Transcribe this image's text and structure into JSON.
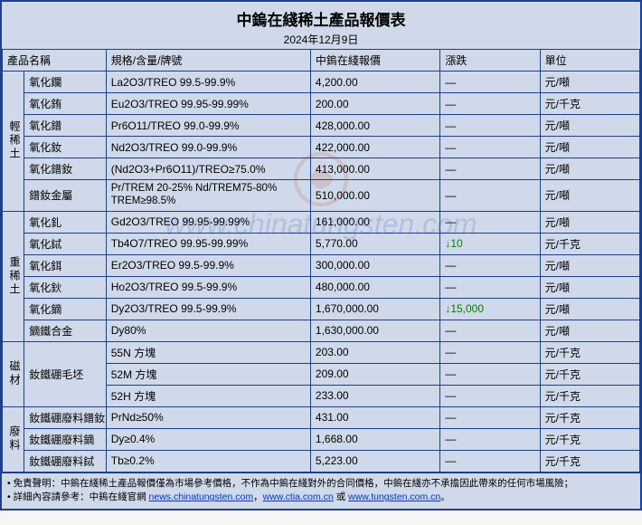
{
  "title": "中鎢在綫稀土產品報價表",
  "date": "2024年12月9日",
  "columns": {
    "name": "產品名稱",
    "spec": "規格/含量/牌號",
    "price": "中鎢在綫報價",
    "change": "漲跌",
    "unit": "單位"
  },
  "groups": [
    {
      "cat": "輕稀土",
      "rows": [
        {
          "name": "氧化鑭",
          "spec": "La2O3/TREO 99.5-99.9%",
          "price": "4,200.00",
          "change": "—",
          "unit": "元/噸"
        },
        {
          "name": "氧化銪",
          "spec": "Eu2O3/TREO 99.95-99.99%",
          "price": "200.00",
          "change": "—",
          "unit": "元/千克"
        },
        {
          "name": "氧化鐠",
          "spec": "Pr6O11/TREO 99.0-99.9%",
          "price": "428,000.00",
          "change": "—",
          "unit": "元/噸"
        },
        {
          "name": "氧化釹",
          "spec": "Nd2O3/TREO 99.0-99.9%",
          "price": "422,000.00",
          "change": "—",
          "unit": "元/噸"
        },
        {
          "name": "氧化鐠釹",
          "spec": "(Nd2O3+Pr6O11)/TREO≥75.0%",
          "price": "413,000.00",
          "change": "—",
          "unit": "元/噸"
        },
        {
          "name": "鐠釹金屬",
          "spec": "Pr/TREM 20-25% Nd/TREM75-80% TREM≥98.5%",
          "price": "510,000.00",
          "change": "—",
          "unit": "元/噸"
        }
      ]
    },
    {
      "cat": "重稀土",
      "rows": [
        {
          "name": "氧化釓",
          "spec": "Gd2O3/TREO 99.95-99.99%",
          "price": "161,000.00",
          "change": "—",
          "unit": "元/噸"
        },
        {
          "name": "氧化鋱",
          "spec": "Tb4O7/TREO 99.95-99.99%",
          "price": "5,770.00",
          "change": "↓10",
          "unit": "元/千克"
        },
        {
          "name": "氧化鉺",
          "spec": "Er2O3/TREO 99.5-99.9%",
          "price": "300,000.00",
          "change": "—",
          "unit": "元/噸"
        },
        {
          "name": "氧化鈥",
          "spec": "Ho2O3/TREO 99.5-99.9%",
          "price": "480,000.00",
          "change": "—",
          "unit": "元/噸"
        },
        {
          "name": "氧化鏑",
          "spec": "Dy2O3/TREO 99.5-99.9%",
          "price": "1,670,000.00",
          "change": "↓15,000",
          "unit": "元/噸"
        },
        {
          "name": "鏑鐵合金",
          "spec": "Dy80%",
          "price": "1,630,000.00",
          "change": "—",
          "unit": "元/噸"
        }
      ]
    },
    {
      "cat": "磁材",
      "rows": [
        {
          "name": "釹鐵硼毛坯",
          "rowspan": 3,
          "spec": "55N 方塊",
          "price": "203.00",
          "change": "—",
          "unit": "元/千克"
        },
        {
          "spec": "52M 方塊",
          "price": "209.00",
          "change": "—",
          "unit": "元/千克"
        },
        {
          "spec": "52H 方塊",
          "price": "233.00",
          "change": "—",
          "unit": "元/千克"
        }
      ]
    },
    {
      "cat": "廢料",
      "rows": [
        {
          "name": "釹鐵硼廢料鐠釹",
          "spec": "PrNd≥50%",
          "price": "431.00",
          "change": "—",
          "unit": "元/千克"
        },
        {
          "name": "釹鐵硼廢料鏑",
          "spec": "Dy≥0.4%",
          "price": "1,668.00",
          "change": "—",
          "unit": "元/千克"
        },
        {
          "name": "釹鐵硼廢料鋱",
          "spec": "Tb≥0.2%",
          "price": "5,223.00",
          "change": "—",
          "unit": "元/千克"
        }
      ]
    }
  ],
  "footer1_prefix": "免責聲明：中鎢在綫稀土產品報價僅為市場參考價格，不作為中鎢在綫對外的合同價格，中鎢在綫亦不承擔因此帶來的任何市場風險；",
  "footer2_prefix": "詳細內容請參考：中鎢在綫官網 ",
  "link1_text": "news.chinatungsten.com",
  "link_sep": "，",
  "link2_text": "www.ctia.com.cn",
  "link_or": " 或 ",
  "link3_text": "www.tungsten.com.cn",
  "footer2_suffix": "。",
  "watermark": "www.chinatungsten.com",
  "colors": {
    "bg": "#cfd9e9",
    "border": "#1c3f94",
    "link": "#0033cc",
    "down": "#008000"
  }
}
